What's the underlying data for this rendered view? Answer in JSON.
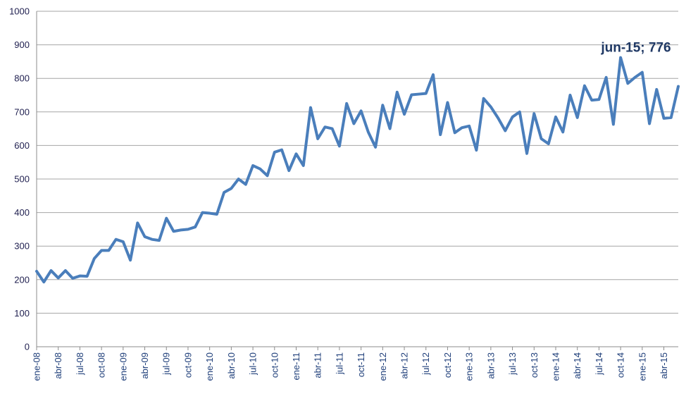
{
  "chart_data": {
    "type": "line",
    "title": "",
    "xlabel": "",
    "ylabel": "",
    "ylim": [
      0,
      1000
    ],
    "yticks": [
      "0",
      "100",
      "200",
      "300",
      "400",
      "500",
      "600",
      "700",
      "800",
      "900",
      "1000"
    ],
    "grid": true,
    "line_color": "#4a7ebb",
    "x_tick_labels": [
      "ene-08",
      "abr-08",
      "jul-08",
      "oct-08",
      "ene-09",
      "abr-09",
      "jul-09",
      "oct-09",
      "ene-10",
      "abr-10",
      "jul-10",
      "oct-10",
      "ene-11",
      "abr-11",
      "jul-11",
      "oct-11",
      "ene-12",
      "abr-12",
      "jul-12",
      "oct-12",
      "ene-13",
      "abr-13",
      "jul-13",
      "oct-13",
      "ene-14",
      "abr-14",
      "jul-14",
      "oct-14",
      "ene-15",
      "abr-15"
    ],
    "x": [
      "ene-08",
      "feb-08",
      "mar-08",
      "abr-08",
      "may-08",
      "jun-08",
      "jul-08",
      "ago-08",
      "sep-08",
      "oct-08",
      "nov-08",
      "dic-08",
      "ene-09",
      "feb-09",
      "mar-09",
      "abr-09",
      "may-09",
      "jun-09",
      "jul-09",
      "ago-09",
      "sep-09",
      "oct-09",
      "nov-09",
      "dic-09",
      "ene-10",
      "feb-10",
      "mar-10",
      "abr-10",
      "may-10",
      "jun-10",
      "jul-10",
      "ago-10",
      "sep-10",
      "oct-10",
      "nov-10",
      "dic-10",
      "ene-11",
      "feb-11",
      "mar-11",
      "abr-11",
      "may-11",
      "jun-11",
      "jul-11",
      "ago-11",
      "sep-11",
      "oct-11",
      "nov-11",
      "dic-11",
      "ene-12",
      "feb-12",
      "mar-12",
      "abr-12",
      "may-12",
      "jun-12",
      "jul-12",
      "ago-12",
      "sep-12",
      "oct-12",
      "nov-12",
      "dic-12",
      "ene-13",
      "feb-13",
      "mar-13",
      "abr-13",
      "may-13",
      "jun-13",
      "jul-13",
      "ago-13",
      "sep-13",
      "oct-13",
      "nov-13",
      "dic-13",
      "ene-14",
      "feb-14",
      "mar-14",
      "abr-14",
      "may-14",
      "jun-14",
      "jul-14",
      "ago-14",
      "sep-14",
      "oct-14",
      "nov-14",
      "dic-14",
      "ene-15",
      "feb-15",
      "mar-15",
      "abr-15",
      "may-15",
      "jun-15"
    ],
    "series": [
      {
        "values": [
          225,
          193,
          227,
          205,
          227,
          204,
          211,
          210,
          263,
          287,
          287,
          320,
          313,
          258,
          369,
          328,
          320,
          317,
          383,
          344,
          348,
          350,
          357,
          400,
          398,
          395,
          460,
          472,
          500,
          484,
          540,
          530,
          510,
          580,
          587,
          525,
          575,
          540,
          713,
          620,
          655,
          650,
          598,
          725,
          665,
          703,
          640,
          595,
          720,
          650,
          759,
          693,
          751,
          753,
          755,
          811,
          632,
          728,
          638,
          653,
          658,
          586,
          740,
          715,
          682,
          644,
          685,
          700,
          576,
          695,
          620,
          605,
          685,
          640,
          750,
          683,
          778,
          735,
          737,
          803,
          663,
          862,
          785,
          803,
          818,
          665,
          767,
          681,
          683,
          776
        ]
      }
    ],
    "annotation": "jun-15; 776"
  }
}
